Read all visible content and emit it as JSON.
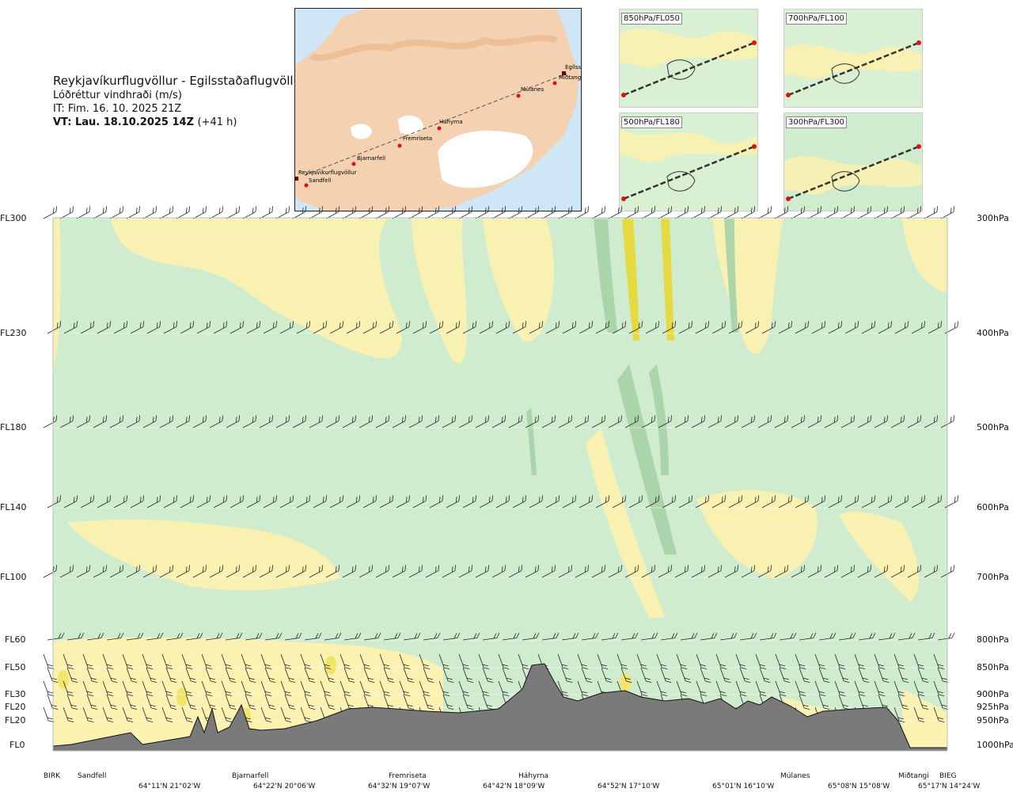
{
  "header": {
    "route": "Reykjavíkurflugvöllur - Egilsstaðaflugvöllur",
    "parameter": "Lóðréttur vindhraði (m/s)",
    "issue_time": "IT: Fim. 16. 10. 2025 21Z",
    "valid_time": "VT: Lau. 18.10.2025 14Z",
    "valid_offset": "(+41 h)"
  },
  "map": {
    "points": [
      "Reykjavíkurflugvöllur",
      "Sandfell",
      "Bjarnarfell",
      "Fremriseta",
      "Háhyrna",
      "Múlanes",
      "Miðtangi",
      "Egilsstaðir"
    ]
  },
  "mini_maps": [
    {
      "label": "850hPa/FL050"
    },
    {
      "label": "700hPa/FL100"
    },
    {
      "label": "500hPa/FL180"
    },
    {
      "label": "300hPa/FL300"
    }
  ],
  "levels": [
    {
      "fl": "FL300",
      "hpa": "300hPa"
    },
    {
      "fl": "FL230",
      "hpa": "400hPa"
    },
    {
      "fl": "FL180",
      "hpa": "500hPa"
    },
    {
      "fl": "FL140",
      "hpa": "600hPa"
    },
    {
      "fl": "FL100",
      "hpa": "700hPa"
    },
    {
      "fl": "FL60",
      "hpa": "800hPa"
    },
    {
      "fl": "FL50",
      "hpa": "850hPa"
    },
    {
      "fl": "FL30",
      "hpa": "900hPa"
    },
    {
      "fl": "FL20",
      "hpa": "925hPa"
    },
    {
      "fl": "FL20",
      "hpa": "950hPa"
    },
    {
      "fl": "FL0",
      "hpa": "1000hPa"
    }
  ],
  "waypoints": [
    "BIRK",
    "Sandfell",
    "Bjarnarfell",
    "Fremriseta",
    "Háhyrna",
    "Múlanes",
    "Miðtangi",
    "BIEG"
  ],
  "coordinates": [
    "64°11'N 21°02'W",
    "64°22'N 20°06'W",
    "64°32'N 19°07'W",
    "64°42'N 18°09'W",
    "64°52'N 17°10'W",
    "65°01'N 16°10'W",
    "65°08'N 15°08'W",
    "65°17'N 14°24'W"
  ],
  "colors": {
    "strong_down": "#7fb489",
    "down": "#a8d3a8",
    "weak_down": "#cfeccf",
    "near_zero": "#fffbe0",
    "weak_up": "#fbf1b0",
    "up": "#f3e46a",
    "strong_up": "#e6d93a",
    "terrain": "#7a7a7a",
    "sea": "#cfe6f6",
    "land": "#f4d1b0"
  },
  "chart_data": {
    "type": "heatmap",
    "title": "Lóðréttur vindhraði (m/s)",
    "xlabel": "",
    "ylabel": "",
    "y_levels_hpa": [
      300,
      400,
      500,
      600,
      700,
      800,
      850,
      900,
      925,
      950,
      1000
    ],
    "x_waypoints": [
      "BIRK",
      "Sandfell",
      "Bjarnarfell",
      "Fremriseta",
      "Háhyrna",
      "Múlanes",
      "Miðtangi",
      "BIEG"
    ],
    "background_category": "weak_down",
    "terrain_note": "terrain cross-section shown along the route"
  }
}
